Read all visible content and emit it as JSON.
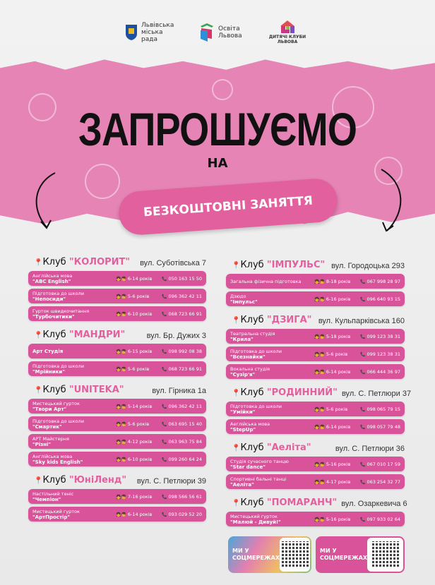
{
  "logos": [
    {
      "text": "Львівська міська рада"
    },
    {
      "text": "Освіта Львова"
    },
    {
      "text": "ДИТЯЧІ КЛУБИ ЛЬВОВА"
    }
  ],
  "header": {
    "title": "ЗАПРОШУЄМО",
    "subtitle": "НА",
    "pill": "БЕЗКОШТОВНІ ЗАНЯТТЯ"
  },
  "colors": {
    "pink": "#d9539a",
    "accent": "#e3609e",
    "band": "#e584b5"
  },
  "icons": {
    "pin": "map-pin-icon",
    "kids": "kids-icon",
    "phone": "phone-icon"
  },
  "left": [
    {
      "prefix": "Клуб",
      "name": "\"КОЛОРИТ\"",
      "address": "вул. Суботівська 7",
      "rows": [
        {
          "type": "Англійська мова",
          "title": "\"ABC English\"",
          "age": "6-14 років",
          "phone": "050 163 15 50"
        },
        {
          "type": "Підготовка до школи",
          "title": "\"Непосиди\"",
          "age": "5-6 років",
          "phone": "096 362 42 11"
        },
        {
          "type": "Гурток швидкочитання",
          "title": "\"Турбочитики\"",
          "age": "6-10 років",
          "phone": "068 723 66 91"
        }
      ]
    },
    {
      "prefix": "Клуб",
      "name": "\"МАНДРИ\"",
      "address": "вул. Бр. Дужих 3",
      "rows": [
        {
          "type": "",
          "title": "Арт Студія",
          "age": "6-15 років",
          "phone": "098 992 08 38"
        },
        {
          "type": "Підготовка до школи",
          "title": "\"Мрійники\"",
          "age": "5-6 років",
          "phone": "068 723 66 91"
        }
      ]
    },
    {
      "prefix": "Клуб",
      "name": "\"UNITEKA\"",
      "address": "вул. Гірника 1а",
      "rows": [
        {
          "type": "Мистецький гурток",
          "title": "\"Твори Арт\"",
          "age": "5-14 років",
          "phone": "096 362 42 11"
        },
        {
          "type": "Підготовка до школи",
          "title": "\"Смартик\"",
          "age": "5-6 років",
          "phone": "063 695 15 40"
        },
        {
          "type": "АРТ Майстерня",
          "title": "\"Різні\"",
          "age": "4-12 років",
          "phone": "063 963 75 84"
        },
        {
          "type": "Англійська мова",
          "title": "\"Sky kids English\"",
          "age": "6-10 років",
          "phone": "099 260 64 24"
        }
      ]
    },
    {
      "prefix": "Клуб",
      "name": "\"ЮніЛенд\"",
      "address": "вул. С. Петлюри 39",
      "rows": [
        {
          "type": "Настільний теніс",
          "title": "\"Чемпіон\"",
          "age": "7-16 років",
          "phone": "098 566 56 61"
        },
        {
          "type": "Мистецький гурток",
          "title": "\"АртПростір\"",
          "age": "6-14 років",
          "phone": "093 029 52 20"
        }
      ]
    }
  ],
  "right": [
    {
      "prefix": "Клуб",
      "name": "\"ІМПУЛЬС\"",
      "address": "вул. Городоцька 293",
      "rows": [
        {
          "type": "Загальна фізична підготовка",
          "title": "",
          "age": "8-18 років",
          "phone": "067 998 28 97"
        },
        {
          "type": "Дзюдо",
          "title": "\"Імпульс\"",
          "age": "6-16 років",
          "phone": "096 640 93 15"
        }
      ]
    },
    {
      "prefix": "Клуб",
      "name": "\"ДЗИГА\"",
      "address": "вул. Кульпарківська 160",
      "rows": [
        {
          "type": "Театральна студія",
          "title": "\"Крила\"",
          "age": "5-18 років",
          "phone": "099 123 38 31"
        },
        {
          "type": "Підготовка до школи",
          "title": "\"Всезнайки\"",
          "age": "5-6 років",
          "phone": "099 123 38 31"
        },
        {
          "type": "Вокальна студія",
          "title": "\"Сузір'я\"",
          "age": "6-14 років",
          "phone": "066 444 36 97"
        }
      ]
    },
    {
      "prefix": "Клуб",
      "name": "\"РОДИННИЙ\"",
      "address": "вул. С. Петлюри 37",
      "rows": [
        {
          "type": "Підготовка до школи",
          "title": "\"Умійки\"",
          "age": "5-6 років",
          "phone": "098 065 79 15"
        },
        {
          "type": "Аеглійська мова",
          "title": "\"StepUp\"",
          "age": "6-14 років",
          "phone": "098 057 79 48"
        }
      ]
    },
    {
      "prefix": "Клуб",
      "name": "\"Аеліта\"",
      "address": "вул. С. Петлюри 36",
      "rows": [
        {
          "type": "Студія сучасного танцю",
          "title": "\"Star dance\"",
          "age": "5-16 років",
          "phone": "067 010 17 59"
        },
        {
          "type": "Спортивні бальні танці",
          "title": "\"Аеліта\"",
          "age": "4-17 років",
          "phone": "063 254 32 77"
        }
      ]
    },
    {
      "prefix": "Клуб",
      "name": "\"ПОМАРАНЧ\"",
      "address": "вул. Озаркевича 6",
      "rows": [
        {
          "type": "Мистецький гурток",
          "title": "\"Малюй - Дивуй!\"",
          "age": "5-16 років",
          "phone": "097 933 02 64"
        }
      ]
    }
  ],
  "social": [
    {
      "label": "МИ У СОЦМЕРЕЖАХ"
    },
    {
      "label": "МИ У СОЦМЕРЕЖАХ"
    }
  ]
}
